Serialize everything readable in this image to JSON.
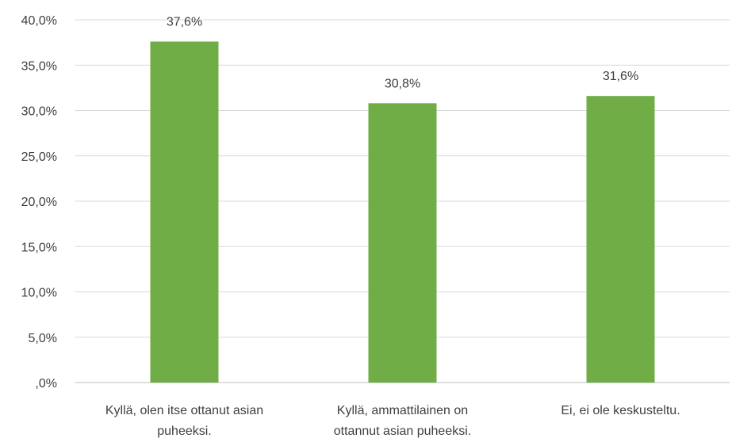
{
  "chart_data": {
    "type": "bar",
    "categories": [
      [
        "Kyllä, olen itse ottanut asian",
        "puheeksi."
      ],
      [
        "Kyllä, ammattilainen on",
        "ottannut asian puheeksi."
      ],
      [
        "Ei, ei ole keskusteltu."
      ]
    ],
    "values": [
      37.6,
      30.8,
      31.6
    ],
    "data_labels": [
      "37,6%",
      "30,8%",
      "31,6%"
    ],
    "y_tick_labels": [
      ",0%",
      "5,0%",
      "10,0%",
      "15,0%",
      "20,0%",
      "25,0%",
      "30,0%",
      "35,0%",
      "40,0%"
    ],
    "ylim": [
      0,
      40
    ],
    "y_step": 5,
    "grid": true,
    "legend": "none",
    "title": "",
    "xlabel": "",
    "ylabel": "",
    "bar_color": "#70ad47"
  }
}
